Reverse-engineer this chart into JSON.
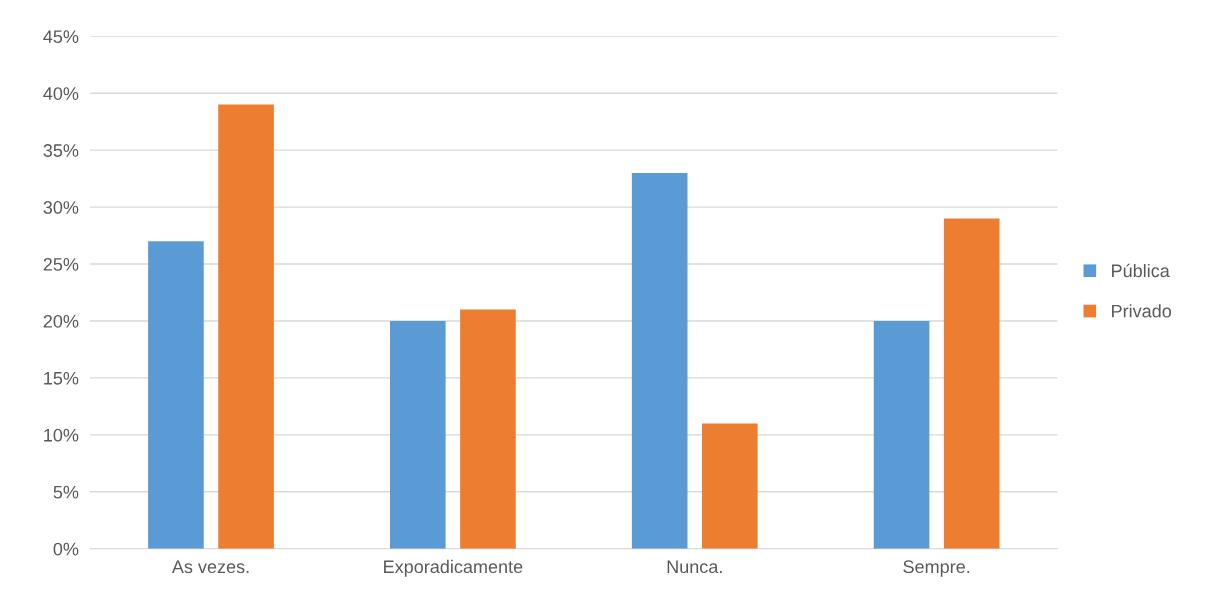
{
  "chart_data": {
    "type": "bar",
    "categories": [
      "As vezes.",
      "Exporadicamente",
      "Nunca.",
      "Sempre."
    ],
    "series": [
      {
        "name": "Pública",
        "color": "#5b9bd5",
        "values": [
          27,
          20,
          33,
          20
        ]
      },
      {
        "name": "Privado",
        "color": "#ed7d31",
        "values": [
          39,
          21,
          11,
          29
        ]
      }
    ],
    "ylim": [
      0,
      45
    ],
    "yticks": [
      {
        "value": 0,
        "label": "0%"
      },
      {
        "value": 5,
        "label": "5%"
      },
      {
        "value": 10,
        "label": "10%"
      },
      {
        "value": 15,
        "label": "15%"
      },
      {
        "value": 20,
        "label": "20%"
      },
      {
        "value": 25,
        "label": "25%"
      },
      {
        "value": 30,
        "label": "30%"
      },
      {
        "value": 35,
        "label": "35%"
      },
      {
        "value": 40,
        "label": "40%"
      },
      {
        "value": 45,
        "label": "45%"
      }
    ],
    "grid": "y",
    "legend": "right"
  }
}
